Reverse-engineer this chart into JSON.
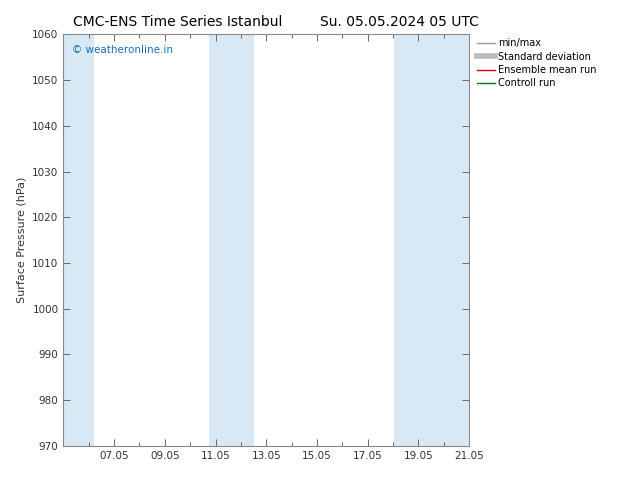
{
  "title_left": "CMC-ENS Time Series Istanbul",
  "title_right": "Su. 05.05.2024 05 UTC",
  "ylabel": "Surface Pressure (hPa)",
  "ylim": [
    970,
    1060
  ],
  "yticks": [
    970,
    980,
    990,
    1000,
    1010,
    1020,
    1030,
    1040,
    1050,
    1060
  ],
  "xlim_start": 0,
  "xlim_end": 16,
  "xtick_labels": [
    "07.05",
    "09.05",
    "11.05",
    "13.05",
    "15.05",
    "17.05",
    "19.05",
    "21.05"
  ],
  "xtick_positions": [
    2,
    4,
    6,
    8,
    10,
    12,
    14,
    16
  ],
  "minor_xtick_positions": [
    1,
    3,
    5,
    7,
    9,
    11,
    13,
    15
  ],
  "shaded_bands": [
    {
      "x_start": 0.0,
      "x_end": 1.2
    },
    {
      "x_start": 5.75,
      "x_end": 7.5
    },
    {
      "x_start": 13.05,
      "x_end": 16.0
    }
  ],
  "band_color": "#d8e8f5",
  "background_color": "#ffffff",
  "plot_bg_color": "#ffffff",
  "watermark_text": "© weatheronline.in",
  "watermark_color": "#1a6eb5",
  "watermark_fontsize": 7.5,
  "legend_items": [
    {
      "label": "min/max",
      "color": "#999999",
      "lw": 1.0,
      "style": "solid"
    },
    {
      "label": "Standard deviation",
      "color": "#bbbbbb",
      "lw": 4,
      "style": "solid"
    },
    {
      "label": "Ensemble mean run",
      "color": "#dd0000",
      "lw": 1.0,
      "style": "solid"
    },
    {
      "label": "Controll run",
      "color": "#007700",
      "lw": 1.0,
      "style": "solid"
    }
  ],
  "title_fontsize": 10,
  "ylabel_fontsize": 8,
  "tick_fontsize": 7.5,
  "legend_fontsize": 7,
  "spine_color": "#888888",
  "tick_color": "#555555"
}
